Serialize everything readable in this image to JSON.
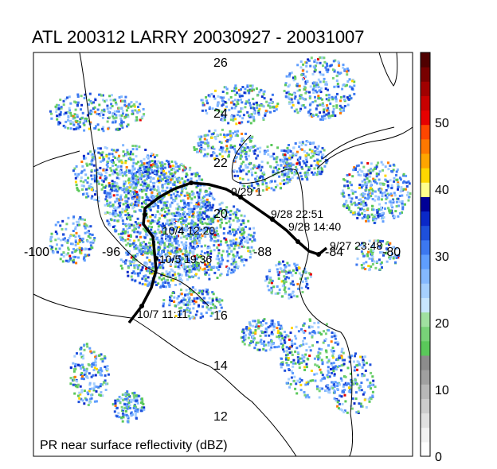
{
  "title": "ATL 200312 LARRY 20030927 - 20031007",
  "caption": "PR near surface reflectivity (dBZ)",
  "lat_labels": [
    "26",
    "24",
    "22",
    "20",
    "16",
    "14",
    "12"
  ],
  "lon_labels": [
    "-100",
    "-96",
    "-88",
    "-84",
    "-80"
  ],
  "track_labels": [
    "9/28 22:51",
    "9/28 14:40",
    "9/27 23:48",
    "10/4 12:20",
    "10/5 19:36",
    "10/7 11:11",
    "9/29 1"
  ],
  "colorbar": {
    "ticks": [
      "0",
      "10",
      "20",
      "30",
      "40",
      "50"
    ],
    "range": [
      0,
      60
    ],
    "colors": [
      "#ffffff",
      "#f2f2f2",
      "#e0e0e0",
      "#cccccc",
      "#b8b8b8",
      "#a0a0a0",
      "#8c8c8c",
      "#5ac85a",
      "#78d278",
      "#a0e0a0",
      "#c8e6ff",
      "#a6d0ff",
      "#84b8ff",
      "#5f9eff",
      "#3c78f0",
      "#1e50dc",
      "#0a28c8",
      "#000096",
      "#ffff8c",
      "#ffd700",
      "#ffa500",
      "#ff7800",
      "#ff4600",
      "#e60000",
      "#c80000",
      "#a00000",
      "#780000",
      "#500000"
    ]
  },
  "storm": {
    "basin": "ATL",
    "id": "200312",
    "name": "LARRY",
    "start": "20030927",
    "end": "20031007"
  }
}
